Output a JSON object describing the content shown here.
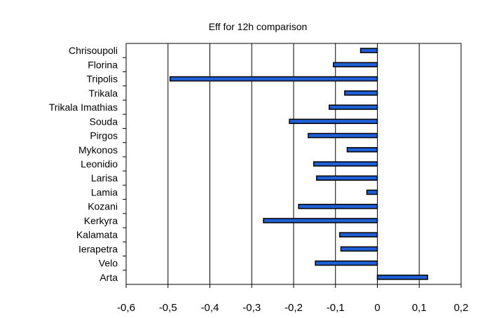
{
  "chart_data": {
    "type": "bar",
    "orientation": "horizontal",
    "title": "Eff for 12h comparison",
    "xlabel": "",
    "ylabel": "",
    "categories": [
      "Chrisoupoli",
      "Florina",
      "Tripolis",
      "Trikala",
      "Trikala Imathias",
      "Souda",
      "Pirgos",
      "Mykonos",
      "Leonidio",
      "Larisa",
      "Lamia",
      "Kozani",
      "Kerkyra",
      "Kalamata",
      "Ierapetra",
      "Velo",
      "Arta"
    ],
    "values": [
      -0.04,
      -0.105,
      -0.495,
      -0.078,
      -0.115,
      -0.21,
      -0.165,
      -0.072,
      -0.152,
      -0.145,
      -0.025,
      -0.188,
      -0.272,
      -0.09,
      -0.087,
      -0.148,
      0.12
    ],
    "xlim": [
      -0.6,
      0.2
    ],
    "x_ticks": [
      "-0,6",
      "-0,5",
      "-0,4",
      "-0,3",
      "-0,2",
      "-0,1",
      "0",
      "0,1",
      "0,2"
    ],
    "x_tick_values": [
      -0.6,
      -0.5,
      -0.4,
      -0.3,
      -0.2,
      -0.1,
      0,
      0.1,
      0.2
    ],
    "grid": "vertical",
    "legend": "none",
    "bar_color": "#1F5FD6",
    "bar_edge_color": "#000000"
  }
}
